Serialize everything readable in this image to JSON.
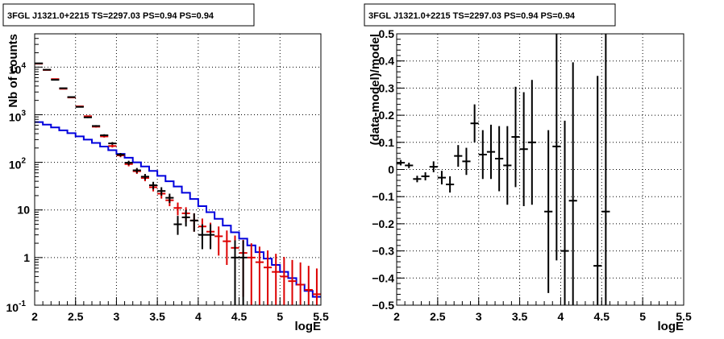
{
  "chart_data": [
    {
      "type": "histogram",
      "title": "3FGL J1321.0+2215 TS=2297.03 PS=0.94 PS=0.94",
      "xlabel": "logE",
      "ylabel": "Nb of counts",
      "xlim": [
        2,
        5.5
      ],
      "ylim": [
        0.1,
        50000
      ],
      "yscale": "log",
      "grid": true,
      "x_ticks": [
        "2",
        "2.5",
        "3",
        "3.5",
        "4",
        "4.5",
        "5",
        "5.5"
      ],
      "y_ticks": [
        {
          "value": 0.1,
          "label": "10",
          "exp": "-1"
        },
        {
          "value": 1,
          "label": "1",
          "exp": ""
        },
        {
          "value": 10,
          "label": "10",
          "exp": ""
        },
        {
          "value": 100,
          "label": "10",
          "exp": "2"
        },
        {
          "value": 1000,
          "label": "10",
          "exp": "3"
        },
        {
          "value": 10000,
          "label": "10",
          "exp": "4"
        }
      ],
      "bin_width": 0.1,
      "series": [
        {
          "role": "data",
          "color": "#000000",
          "points": [
            {
              "x": 2.05,
              "y": 12000,
              "lo": 11890,
              "hi": 12110
            },
            {
              "x": 2.15,
              "y": 8800,
              "lo": 8706,
              "hi": 8894
            },
            {
              "x": 2.25,
              "y": 5400,
              "lo": 5327,
              "hi": 5473
            },
            {
              "x": 2.35,
              "y": 3600,
              "lo": 3540,
              "hi": 3660
            },
            {
              "x": 2.45,
              "y": 2350,
              "lo": 2302,
              "hi": 2398
            },
            {
              "x": 2.55,
              "y": 1460,
              "lo": 1422,
              "hi": 1498
            },
            {
              "x": 2.65,
              "y": 880,
              "lo": 850,
              "hi": 910
            },
            {
              "x": 2.75,
              "y": 580,
              "lo": 556,
              "hi": 604
            },
            {
              "x": 2.85,
              "y": 370,
              "lo": 351,
              "hi": 389
            },
            {
              "x": 2.95,
              "y": 250,
              "lo": 234,
              "hi": 266
            },
            {
              "x": 3.05,
              "y": 145,
              "lo": 133,
              "hi": 157
            },
            {
              "x": 3.15,
              "y": 98,
              "lo": 88,
              "hi": 108
            },
            {
              "x": 3.25,
              "y": 68,
              "lo": 60,
              "hi": 76
            },
            {
              "x": 3.35,
              "y": 50,
              "lo": 43,
              "hi": 57
            },
            {
              "x": 3.45,
              "y": 33,
              "lo": 27,
              "hi": 39
            },
            {
              "x": 3.55,
              "y": 25,
              "lo": 20,
              "hi": 30
            },
            {
              "x": 3.65,
              "y": 18,
              "lo": 14,
              "hi": 22
            },
            {
              "x": 3.75,
              "y": 5,
              "lo": 3,
              "hi": 7.5
            },
            {
              "x": 3.85,
              "y": 7,
              "lo": 4.5,
              "hi": 10
            },
            {
              "x": 3.95,
              "y": 6,
              "lo": 3.5,
              "hi": 8.5
            },
            {
              "x": 4.05,
              "y": 3,
              "lo": 1.5,
              "hi": 5
            },
            {
              "x": 4.15,
              "y": 3,
              "lo": 1.5,
              "hi": 5
            },
            {
              "x": 4.45,
              "y": 1,
              "lo": 0.1,
              "hi": 2.3
            },
            {
              "x": 4.55,
              "y": 1,
              "lo": 0.1,
              "hi": 2.3
            }
          ]
        },
        {
          "role": "model",
          "color": "#dd0000",
          "points": [
            {
              "x": 2.05,
              "y": 11800,
              "err": 110
            },
            {
              "x": 2.15,
              "y": 8700,
              "err": 95
            },
            {
              "x": 2.25,
              "y": 5600,
              "err": 75
            },
            {
              "x": 2.35,
              "y": 3500,
              "err": 60
            },
            {
              "x": 2.45,
              "y": 2300,
              "err": 48
            },
            {
              "x": 2.55,
              "y": 1500,
              "err": 39
            },
            {
              "x": 2.65,
              "y": 930,
              "err": 31
            },
            {
              "x": 2.75,
              "y": 560,
              "err": 24
            },
            {
              "x": 2.85,
              "y": 350,
              "err": 19
            },
            {
              "x": 2.95,
              "y": 220,
              "err": 15
            },
            {
              "x": 3.05,
              "y": 140,
              "err": 12
            },
            {
              "x": 3.15,
              "y": 92,
              "err": 9.6
            },
            {
              "x": 3.25,
              "y": 65,
              "err": 8
            },
            {
              "x": 3.35,
              "y": 47,
              "err": 6.9
            },
            {
              "x": 3.45,
              "y": 30,
              "err": 5.5
            },
            {
              "x": 3.55,
              "y": 22,
              "err": 4.7
            },
            {
              "x": 3.65,
              "y": 16,
              "err": 4
            },
            {
              "x": 3.75,
              "y": 11,
              "err": 3.3
            },
            {
              "x": 3.85,
              "y": 8.5,
              "err": 2.9
            },
            {
              "x": 3.95,
              "y": 6,
              "err": 2.5
            },
            {
              "x": 4.05,
              "y": 4.5,
              "err": 2.1
            },
            {
              "x": 4.15,
              "y": 3.5,
              "err": 1.9
            },
            {
              "x": 4.25,
              "y": 2.8,
              "err": 1.7
            },
            {
              "x": 4.35,
              "y": 2.2,
              "err": 1.5
            },
            {
              "x": 4.45,
              "y": 1.6,
              "err": 1.3
            },
            {
              "x": 4.55,
              "y": 1.25,
              "err": 1.1
            },
            {
              "x": 4.65,
              "y": 1.0,
              "err": 1.0
            },
            {
              "x": 4.75,
              "y": 0.8,
              "err": 0.9
            },
            {
              "x": 4.85,
              "y": 0.62,
              "err": 0.79
            },
            {
              "x": 4.95,
              "y": 0.5,
              "err": 0.7
            },
            {
              "x": 5.05,
              "y": 0.4,
              "err": 0.63
            },
            {
              "x": 5.15,
              "y": 0.32,
              "err": 0.57
            },
            {
              "x": 5.25,
              "y": 0.27,
              "err": 0.52
            },
            {
              "x": 5.35,
              "y": 0.21,
              "err": 0.46
            },
            {
              "x": 5.45,
              "y": 0.17,
              "err": 0.42
            }
          ]
        },
        {
          "role": "background",
          "color": "#0000dd",
          "step_values": [
            700,
            620,
            540,
            470,
            410,
            350,
            300,
            255,
            215,
            180,
            150,
            125,
            100,
            82,
            66,
            52,
            40,
            31,
            23,
            17,
            12,
            9,
            6.5,
            4.7,
            3.4,
            2.5,
            1.8,
            1.3,
            0.95,
            0.7,
            0.5,
            0.37,
            0.27,
            0.2,
            0.15
          ]
        }
      ]
    },
    {
      "type": "scatter",
      "title": "3FGL J1321.0+2215 TS=2297.03 PS=0.94 PS=0.94",
      "xlabel": "logE",
      "ylabel": "(data-model)/model",
      "xlim": [
        2,
        5.5
      ],
      "ylim": [
        -0.5,
        0.5
      ],
      "grid": true,
      "x_ticks": [
        "2",
        "2.5",
        "3",
        "3.5",
        "4",
        "4.5",
        "5",
        "5.5"
      ],
      "y_ticks": [
        "-0.5",
        "-0.4",
        "-0.3",
        "-0.2",
        "-0.1",
        "0",
        "0.1",
        "0.2",
        "0.3",
        "0.4",
        "0.5"
      ],
      "bin_width": 0.1,
      "points": [
        {
          "x": 2.05,
          "y": 0.025,
          "err": 0.01
        },
        {
          "x": 2.15,
          "y": 0.015,
          "err": 0.01
        },
        {
          "x": 2.25,
          "y": -0.035,
          "err": 0.012
        },
        {
          "x": 2.35,
          "y": -0.025,
          "err": 0.015
        },
        {
          "x": 2.45,
          "y": 0.01,
          "err": 0.02
        },
        {
          "x": 2.55,
          "y": -0.03,
          "err": 0.025
        },
        {
          "x": 2.65,
          "y": -0.055,
          "err": 0.03
        },
        {
          "x": 2.75,
          "y": 0.05,
          "err": 0.04
        },
        {
          "x": 2.85,
          "y": 0.03,
          "err": 0.05
        },
        {
          "x": 2.95,
          "y": 0.17,
          "err": 0.07
        },
        {
          "x": 3.05,
          "y": 0.055,
          "err": 0.09
        },
        {
          "x": 3.15,
          "y": 0.065,
          "err": 0.1
        },
        {
          "x": 3.25,
          "y": 0.04,
          "err": 0.12
        },
        {
          "x": 3.35,
          "y": 0.015,
          "err": 0.145
        },
        {
          "x": 3.45,
          "y": 0.12,
          "err": 0.185
        },
        {
          "x": 3.55,
          "y": 0.075,
          "err": 0.21
        },
        {
          "x": 3.65,
          "y": 0.1,
          "err": 0.23
        },
        {
          "x": 3.85,
          "y": -0.155,
          "err": 0.3
        },
        {
          "x": 3.95,
          "y": 0.085,
          "err": 0.42
        },
        {
          "x": 4.05,
          "y": -0.3,
          "err": 0.48
        },
        {
          "x": 4.15,
          "y": -0.115,
          "err": 0.51
        },
        {
          "x": 4.45,
          "y": -0.355,
          "err": 0.7
        },
        {
          "x": 4.55,
          "y": -0.155,
          "err": 0.8
        }
      ]
    }
  ]
}
